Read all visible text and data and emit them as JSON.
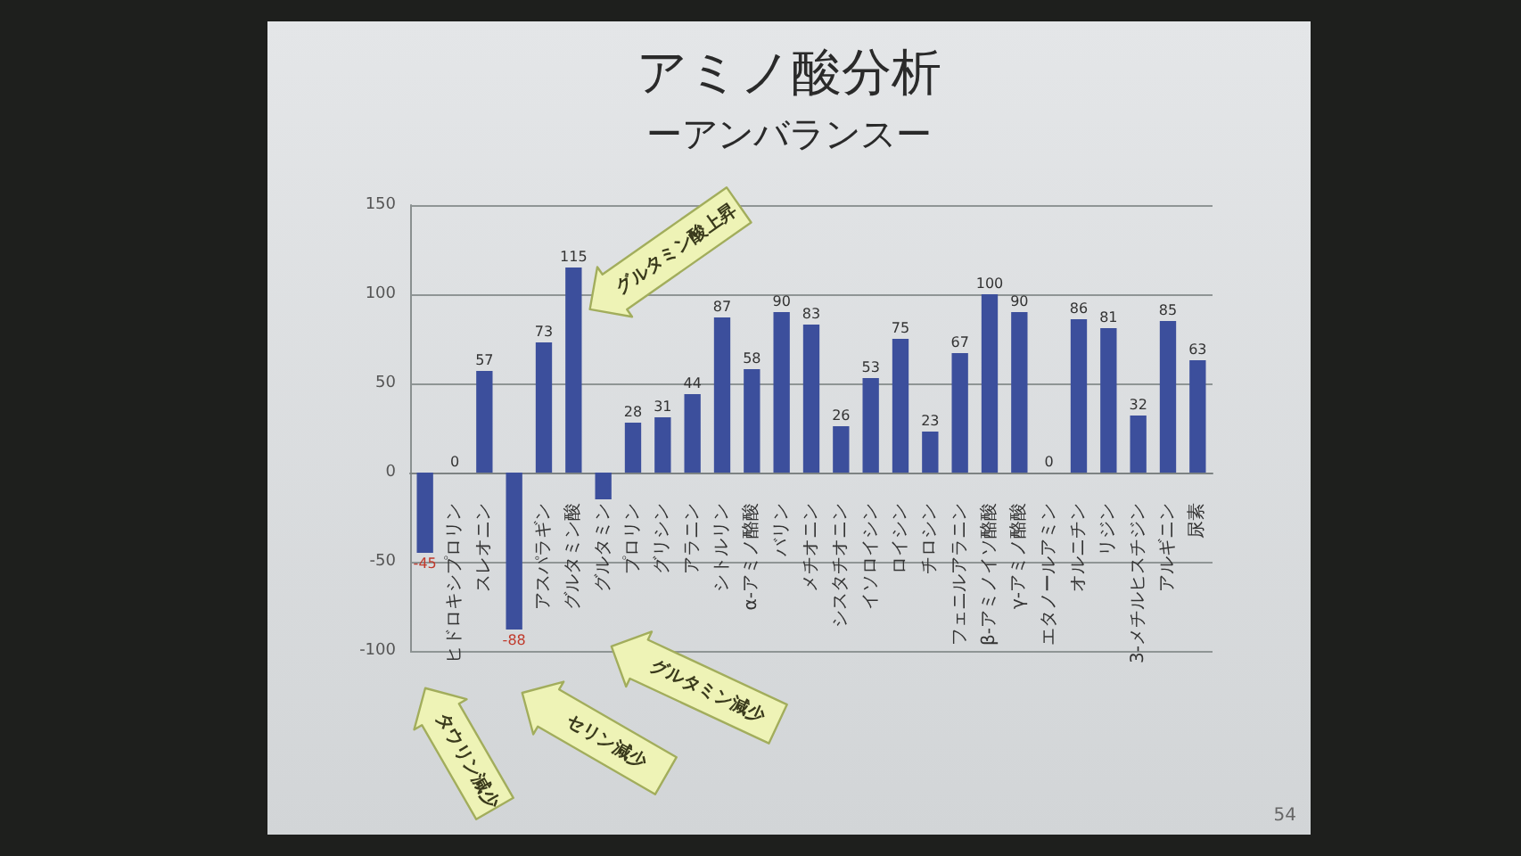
{
  "chart_data": {
    "type": "bar",
    "title": "アミノ酸分析",
    "subtitle": "ーアンバランスー",
    "categories": [
      null,
      "ヒドロキシプロリン",
      "スレオニン",
      null,
      "アスパラギン",
      "グルタミン酸",
      "グルタミン",
      "プロリン",
      "グリシン",
      "アラニン",
      "シトルリン",
      "α-アミノ酪酸",
      "バリン",
      "メチオニン",
      "シスタチオニン",
      "イソロイシン",
      "ロイシン",
      "チロシン",
      "フェニルアラニン",
      "β-アミノイソ酪酸",
      "γ-アミノ酪酸",
      "エタノールアミン",
      "オルニチン",
      "リジン",
      "3-メチルヒスチジン",
      "アルギニン",
      "尿素"
    ],
    "values": [
      -45,
      0,
      57,
      -88,
      73,
      115,
      -15,
      28,
      31,
      44,
      87,
      58,
      90,
      83,
      26,
      53,
      75,
      23,
      67,
      100,
      90,
      0,
      86,
      81,
      32,
      85,
      63
    ],
    "value_labels": [
      "-45",
      "0",
      "57",
      "-88",
      "73",
      "115",
      null,
      "28",
      "31",
      "44",
      "87",
      "58",
      "90",
      "83",
      "26",
      "53",
      "75",
      "23",
      "67",
      "100",
      "90",
      "0",
      "86",
      "81",
      "32",
      "85",
      "63"
    ],
    "color": "#3c4f9c",
    "ylim": [
      -100,
      150
    ],
    "yticks": [
      -100,
      -50,
      0,
      50,
      100,
      150
    ],
    "grid": "y",
    "annotations": [
      {
        "text": "グルタミン酸上昇",
        "x": "グルタミン酸",
        "y": 115
      },
      "グルタミン減少",
      "セリン減少",
      "タウリン減少",
      "54"
    ]
  }
}
